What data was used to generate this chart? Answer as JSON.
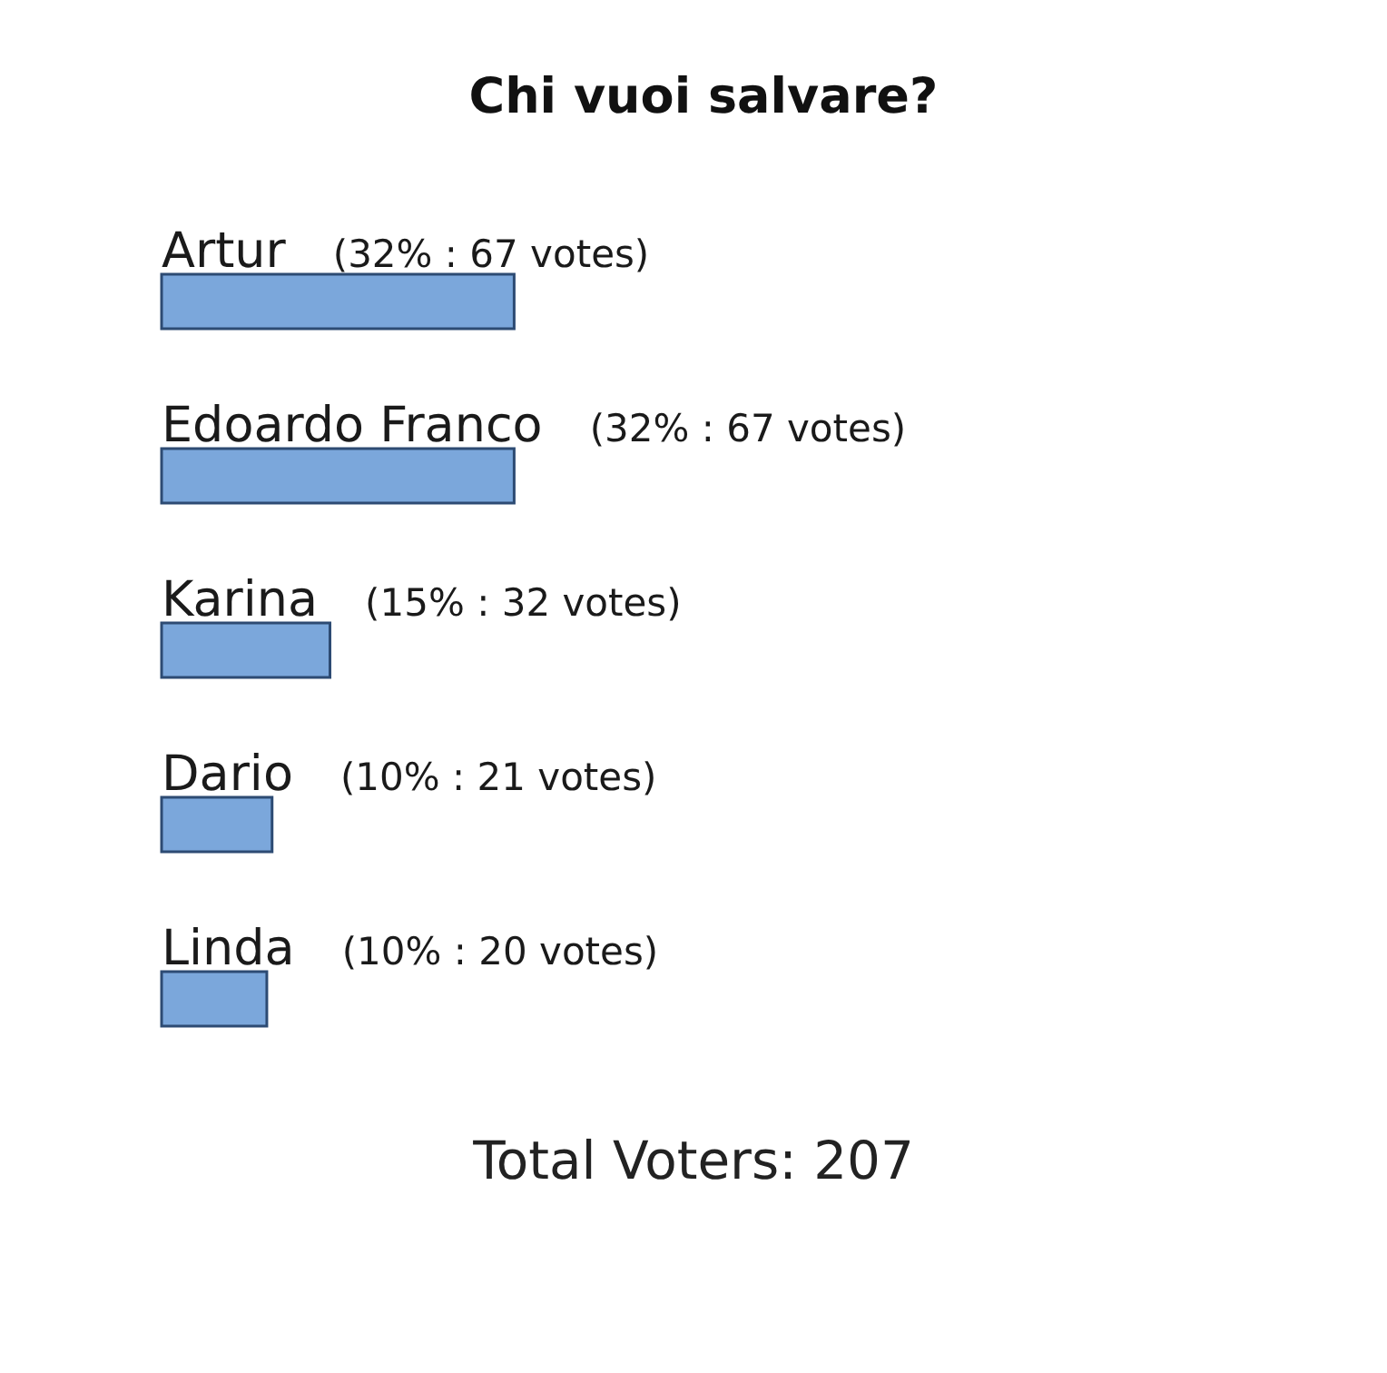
{
  "chart_data": {
    "type": "bar",
    "orientation": "horizontal",
    "title": "Chi vuoi salvare?",
    "categories": [
      "Artur",
      "Edoardo Franco",
      "Karina",
      "Dario",
      "Linda"
    ],
    "values": [
      67,
      67,
      32,
      21,
      20
    ],
    "value_labels": [
      "(32% : 67 votes)",
      "(32% : 67 votes)",
      "(15% : 32 votes)",
      "(10% : 21 votes)",
      "(10% : 20 votes)"
    ],
    "color": "#7ba7db",
    "annotations": [
      "Total Voters: 207"
    ]
  }
}
